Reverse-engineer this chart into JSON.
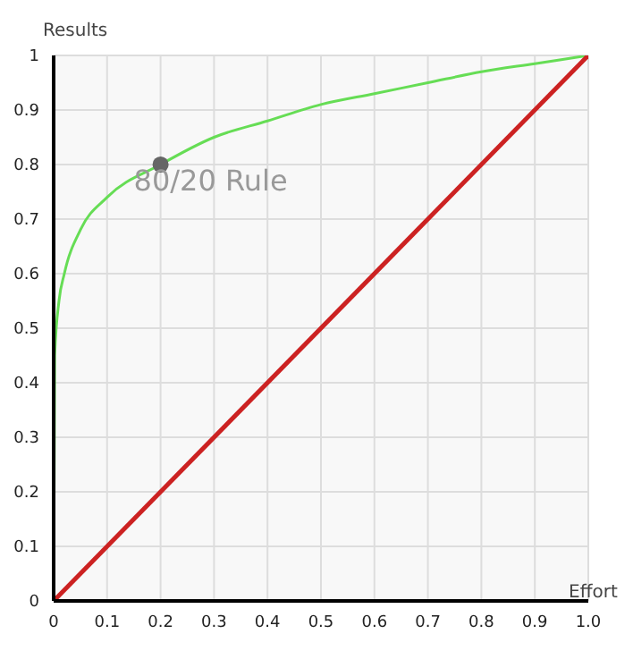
{
  "chart_data": {
    "type": "line",
    "xlabel": "Effort",
    "ylabel": "Results",
    "xlim": [
      0,
      1
    ],
    "ylim": [
      0,
      1
    ],
    "xticks": [
      0,
      0.1,
      0.2,
      0.3,
      0.4,
      0.5,
      0.6,
      0.7,
      0.8,
      0.9,
      {
        "value": 1,
        "label": "1.0"
      }
    ],
    "yticks": [
      0,
      0.1,
      0.2,
      0.3,
      0.4,
      0.5,
      0.6,
      0.7,
      0.8,
      0.9,
      1
    ],
    "grid": true,
    "series": [
      {
        "color": "#66dd55",
        "x": [
          0,
          0.002,
          0.01,
          0.02,
          0.05,
          0.1,
          0.2,
          0.3,
          0.4,
          0.5,
          0.6,
          0.7,
          0.8,
          0.9,
          1
        ],
        "values": [
          0,
          0.45,
          0.55,
          0.6,
          0.68,
          0.74,
          0.8,
          0.85,
          0.88,
          0.91,
          0.93,
          0.95,
          0.97,
          0.985,
          1
        ]
      },
      {
        "color": "#cc2222",
        "x": [
          0,
          1
        ],
        "values": [
          0,
          1
        ]
      },
      {
        "type": "scatter",
        "color": "#666666",
        "x": [
          0.2
        ],
        "values": [
          0.8
        ]
      }
    ],
    "annotations": [
      {
        "text": "80/20 Rule",
        "x": 0.2,
        "y": 0.8
      }
    ]
  }
}
